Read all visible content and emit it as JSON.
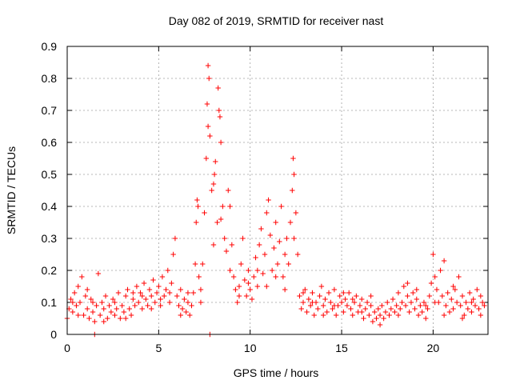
{
  "chart_data": {
    "type": "scatter",
    "title": "Day 082 of 2019, SRMTID for receiver nast",
    "xlabel": "GPS time / hours",
    "ylabel": "SRMTID / TECUs",
    "xlim": [
      0,
      23
    ],
    "ylim": [
      0,
      0.9
    ],
    "xticks": [
      0,
      5,
      10,
      15,
      20
    ],
    "xtick_labels": [
      "0",
      "5",
      "10",
      "15",
      "20"
    ],
    "yticks": [
      0,
      0.1,
      0.2,
      0.3,
      0.4,
      0.5,
      0.6,
      0.7,
      0.8,
      0.9
    ],
    "ytick_labels": [
      "0",
      "0.1",
      "0.2",
      "0.3",
      "0.4",
      "0.5",
      "0.6",
      "0.7",
      "0.8",
      "0.9"
    ],
    "grid": true,
    "marker": "+",
    "color": "#ff0000",
    "series": [
      {
        "name": "SRMTID",
        "points": [
          [
            0.0,
            0.05
          ],
          [
            0.1,
            0.08
          ],
          [
            0.2,
            0.11
          ],
          [
            0.3,
            0.07
          ],
          [
            0.4,
            0.13
          ],
          [
            0.5,
            0.09
          ],
          [
            0.6,
            0.15
          ],
          [
            0.7,
            0.1
          ],
          [
            0.8,
            0.18
          ],
          [
            0.9,
            0.06
          ],
          [
            1.0,
            0.12
          ],
          [
            1.1,
            0.08
          ],
          [
            1.2,
            0.05
          ],
          [
            1.3,
            0.11
          ],
          [
            1.4,
            0.07
          ],
          [
            1.5,
            0.04
          ],
          [
            1.6,
            0.09
          ],
          [
            1.7,
            0.19
          ],
          [
            1.8,
            0.06
          ],
          [
            1.9,
            0.1
          ],
          [
            2.0,
            0.08
          ],
          [
            2.1,
            0.12
          ],
          [
            2.2,
            0.05
          ],
          [
            2.3,
            0.09
          ],
          [
            2.4,
            0.07
          ],
          [
            2.5,
            0.11
          ],
          [
            2.6,
            0.06
          ],
          [
            2.7,
            0.08
          ],
          [
            2.8,
            0.13
          ],
          [
            2.9,
            0.05
          ],
          [
            3.0,
            0.09
          ],
          [
            3.1,
            0.07
          ],
          [
            3.2,
            0.12
          ],
          [
            3.3,
            0.14
          ],
          [
            3.4,
            0.08
          ],
          [
            3.5,
            0.06
          ],
          [
            3.6,
            0.11
          ],
          [
            3.7,
            0.09
          ],
          [
            3.8,
            0.15
          ],
          [
            3.9,
            0.1
          ],
          [
            4.0,
            0.13
          ],
          [
            4.1,
            0.08
          ],
          [
            4.2,
            0.16
          ],
          [
            4.3,
            0.11
          ],
          [
            4.4,
            0.09
          ],
          [
            4.5,
            0.14
          ],
          [
            4.6,
            0.12
          ],
          [
            4.7,
            0.17
          ],
          [
            4.8,
            0.1
          ],
          [
            4.9,
            0.13
          ],
          [
            5.0,
            0.15
          ],
          [
            5.1,
            0.11
          ],
          [
            5.2,
            0.18
          ],
          [
            5.3,
            0.12
          ],
          [
            5.4,
            0.14
          ],
          [
            5.5,
            0.2
          ],
          [
            5.6,
            0.13
          ],
          [
            5.7,
            0.16
          ],
          [
            5.8,
            0.25
          ],
          [
            5.9,
            0.3
          ],
          [
            6.0,
            0.12
          ],
          [
            6.1,
            0.09
          ],
          [
            6.2,
            0.14
          ],
          [
            6.3,
            0.08
          ],
          [
            6.4,
            0.11
          ],
          [
            6.5,
            0.07
          ],
          [
            6.6,
            0.1
          ],
          [
            6.7,
            0.06
          ],
          [
            6.8,
            0.09
          ],
          [
            6.9,
            0.13
          ],
          [
            7.0,
            0.22
          ],
          [
            7.05,
            0.35
          ],
          [
            7.1,
            0.42
          ],
          [
            7.15,
            0.4
          ],
          [
            7.2,
            0.18
          ],
          [
            7.3,
            0.14
          ],
          [
            7.4,
            0.22
          ],
          [
            7.5,
            0.38
          ],
          [
            7.6,
            0.55
          ],
          [
            7.65,
            0.72
          ],
          [
            7.7,
            0.84
          ],
          [
            7.75,
            0.8
          ],
          [
            7.8,
            0.62
          ],
          [
            7.9,
            0.45
          ],
          [
            8.0,
            0.28
          ],
          [
            8.05,
            0.5
          ],
          [
            8.1,
            0.54
          ],
          [
            8.2,
            0.35
          ],
          [
            8.25,
            0.77
          ],
          [
            8.3,
            0.7
          ],
          [
            8.35,
            0.68
          ],
          [
            8.4,
            0.6
          ],
          [
            8.5,
            0.4
          ],
          [
            8.6,
            0.3
          ],
          [
            8.7,
            0.26
          ],
          [
            8.8,
            0.45
          ],
          [
            8.9,
            0.4
          ],
          [
            9.0,
            0.28
          ],
          [
            9.1,
            0.18
          ],
          [
            9.2,
            0.14
          ],
          [
            9.3,
            0.1
          ],
          [
            9.4,
            0.15
          ],
          [
            9.5,
            0.22
          ],
          [
            9.6,
            0.3
          ],
          [
            9.7,
            0.17
          ],
          [
            9.8,
            0.12
          ],
          [
            9.9,
            0.2
          ],
          [
            10.0,
            0.14
          ],
          [
            10.1,
            0.11
          ],
          [
            10.2,
            0.18
          ],
          [
            10.3,
            0.24
          ],
          [
            10.4,
            0.15
          ],
          [
            10.5,
            0.28
          ],
          [
            10.6,
            0.33
          ],
          [
            10.7,
            0.19
          ],
          [
            10.8,
            0.25
          ],
          [
            10.9,
            0.38
          ],
          [
            11.0,
            0.42
          ],
          [
            11.1,
            0.31
          ],
          [
            11.2,
            0.2
          ],
          [
            11.3,
            0.27
          ],
          [
            11.4,
            0.35
          ],
          [
            11.5,
            0.22
          ],
          [
            11.6,
            0.29
          ],
          [
            11.7,
            0.4
          ],
          [
            11.8,
            0.18
          ],
          [
            11.9,
            0.25
          ],
          [
            12.0,
            0.3
          ],
          [
            12.1,
            0.22
          ],
          [
            12.2,
            0.35
          ],
          [
            12.3,
            0.45
          ],
          [
            12.35,
            0.55
          ],
          [
            12.4,
            0.5
          ],
          [
            12.5,
            0.38
          ],
          [
            12.6,
            0.25
          ],
          [
            12.7,
            0.12
          ],
          [
            12.8,
            0.08
          ],
          [
            12.9,
            0.1
          ],
          [
            13.0,
            0.14
          ],
          [
            13.1,
            0.07
          ],
          [
            13.2,
            0.11
          ],
          [
            13.3,
            0.09
          ],
          [
            13.4,
            0.13
          ],
          [
            13.5,
            0.06
          ],
          [
            13.6,
            0.1
          ],
          [
            13.7,
            0.08
          ],
          [
            13.8,
            0.12
          ],
          [
            13.9,
            0.15
          ],
          [
            14.0,
            0.09
          ],
          [
            14.1,
            0.11
          ],
          [
            14.2,
            0.07
          ],
          [
            14.3,
            0.13
          ],
          [
            14.4,
            0.1
          ],
          [
            14.5,
            0.08
          ],
          [
            14.6,
            0.14
          ],
          [
            14.7,
            0.06
          ],
          [
            14.8,
            0.09
          ],
          [
            14.9,
            0.12
          ],
          [
            15.0,
            0.1
          ],
          [
            15.1,
            0.07
          ],
          [
            15.2,
            0.11
          ],
          [
            15.3,
            0.09
          ],
          [
            15.4,
            0.13
          ],
          [
            15.5,
            0.08
          ],
          [
            15.6,
            0.06
          ],
          [
            15.7,
            0.1
          ],
          [
            15.8,
            0.12
          ],
          [
            15.9,
            0.07
          ],
          [
            16.0,
            0.09
          ],
          [
            16.1,
            0.11
          ],
          [
            16.2,
            0.05
          ],
          [
            16.3,
            0.08
          ],
          [
            16.4,
            0.1
          ],
          [
            16.5,
            0.06
          ],
          [
            16.6,
            0.09
          ],
          [
            16.7,
            0.04
          ],
          [
            16.8,
            0.07
          ],
          [
            16.9,
            0.05
          ],
          [
            17.0,
            0.08
          ],
          [
            17.1,
            0.06
          ],
          [
            17.2,
            0.09
          ],
          [
            17.3,
            0.05
          ],
          [
            17.4,
            0.07
          ],
          [
            17.5,
            0.1
          ],
          [
            17.6,
            0.06
          ],
          [
            17.7,
            0.08
          ],
          [
            17.8,
            0.11
          ],
          [
            17.9,
            0.07
          ],
          [
            18.0,
            0.09
          ],
          [
            18.1,
            0.13
          ],
          [
            18.2,
            0.08
          ],
          [
            18.3,
            0.1
          ],
          [
            18.4,
            0.15
          ],
          [
            18.5,
            0.09
          ],
          [
            18.6,
            0.12
          ],
          [
            18.7,
            0.07
          ],
          [
            18.8,
            0.1
          ],
          [
            18.9,
            0.13
          ],
          [
            19.0,
            0.08
          ],
          [
            19.1,
            0.11
          ],
          [
            19.2,
            0.06
          ],
          [
            19.3,
            0.09
          ],
          [
            19.4,
            0.07
          ],
          [
            19.5,
            0.1
          ],
          [
            19.6,
            0.05
          ],
          [
            19.7,
            0.08
          ],
          [
            19.8,
            0.12
          ],
          [
            19.9,
            0.16
          ],
          [
            20.0,
            0.25
          ],
          [
            20.1,
            0.18
          ],
          [
            20.2,
            0.14
          ],
          [
            20.3,
            0.1
          ],
          [
            20.4,
            0.2
          ],
          [
            20.5,
            0.12
          ],
          [
            20.6,
            0.23
          ],
          [
            20.7,
            0.09
          ],
          [
            20.8,
            0.13
          ],
          [
            20.9,
            0.07
          ],
          [
            21.0,
            0.11
          ],
          [
            21.1,
            0.08
          ],
          [
            21.2,
            0.14
          ],
          [
            21.3,
            0.1
          ],
          [
            21.4,
            0.18
          ],
          [
            21.5,
            0.09
          ],
          [
            21.6,
            0.12
          ],
          [
            21.7,
            0.06
          ],
          [
            21.8,
            0.1
          ],
          [
            21.9,
            0.08
          ],
          [
            22.0,
            0.13
          ],
          [
            22.1,
            0.07
          ],
          [
            22.2,
            0.11
          ],
          [
            22.3,
            0.09
          ],
          [
            22.4,
            0.14
          ],
          [
            22.5,
            0.08
          ],
          [
            22.6,
            0.12
          ],
          [
            22.7,
            0.1
          ],
          [
            22.8,
            0.09
          ],
          [
            0.3,
            0.1
          ],
          [
            0.6,
            0.06
          ],
          [
            1.1,
            0.14
          ],
          [
            1.4,
            0.1
          ],
          [
            2.0,
            0.04
          ],
          [
            2.6,
            0.1
          ],
          [
            3.2,
            0.05
          ],
          [
            3.6,
            0.13
          ],
          [
            4.1,
            0.12
          ],
          [
            4.6,
            0.08
          ],
          [
            5.1,
            0.09
          ],
          [
            5.6,
            0.1
          ],
          [
            6.2,
            0.06
          ],
          [
            6.6,
            0.13
          ],
          [
            7.3,
            0.1
          ],
          [
            7.7,
            0.65
          ],
          [
            8.0,
            0.47
          ],
          [
            8.4,
            0.36
          ],
          [
            8.9,
            0.2
          ],
          [
            9.4,
            0.12
          ],
          [
            9.9,
            0.16
          ],
          [
            10.4,
            0.2
          ],
          [
            10.9,
            0.15
          ],
          [
            11.4,
            0.18
          ],
          [
            11.9,
            0.14
          ],
          [
            12.4,
            0.3
          ],
          [
            12.9,
            0.13
          ],
          [
            13.4,
            0.1
          ],
          [
            14.0,
            0.06
          ],
          [
            14.6,
            0.09
          ],
          [
            15.1,
            0.13
          ],
          [
            15.6,
            0.11
          ],
          [
            16.1,
            0.07
          ],
          [
            16.6,
            0.12
          ],
          [
            17.1,
            0.03
          ],
          [
            17.6,
            0.06
          ],
          [
            18.1,
            0.06
          ],
          [
            18.6,
            0.16
          ],
          [
            19.1,
            0.14
          ],
          [
            19.6,
            0.09
          ],
          [
            20.1,
            0.1
          ],
          [
            20.6,
            0.06
          ],
          [
            21.1,
            0.15
          ],
          [
            21.6,
            0.05
          ],
          [
            22.1,
            0.1
          ],
          [
            22.6,
            0.06
          ],
          [
            1.5,
            0.0
          ],
          [
            7.8,
            0.0
          ]
        ]
      }
    ]
  }
}
